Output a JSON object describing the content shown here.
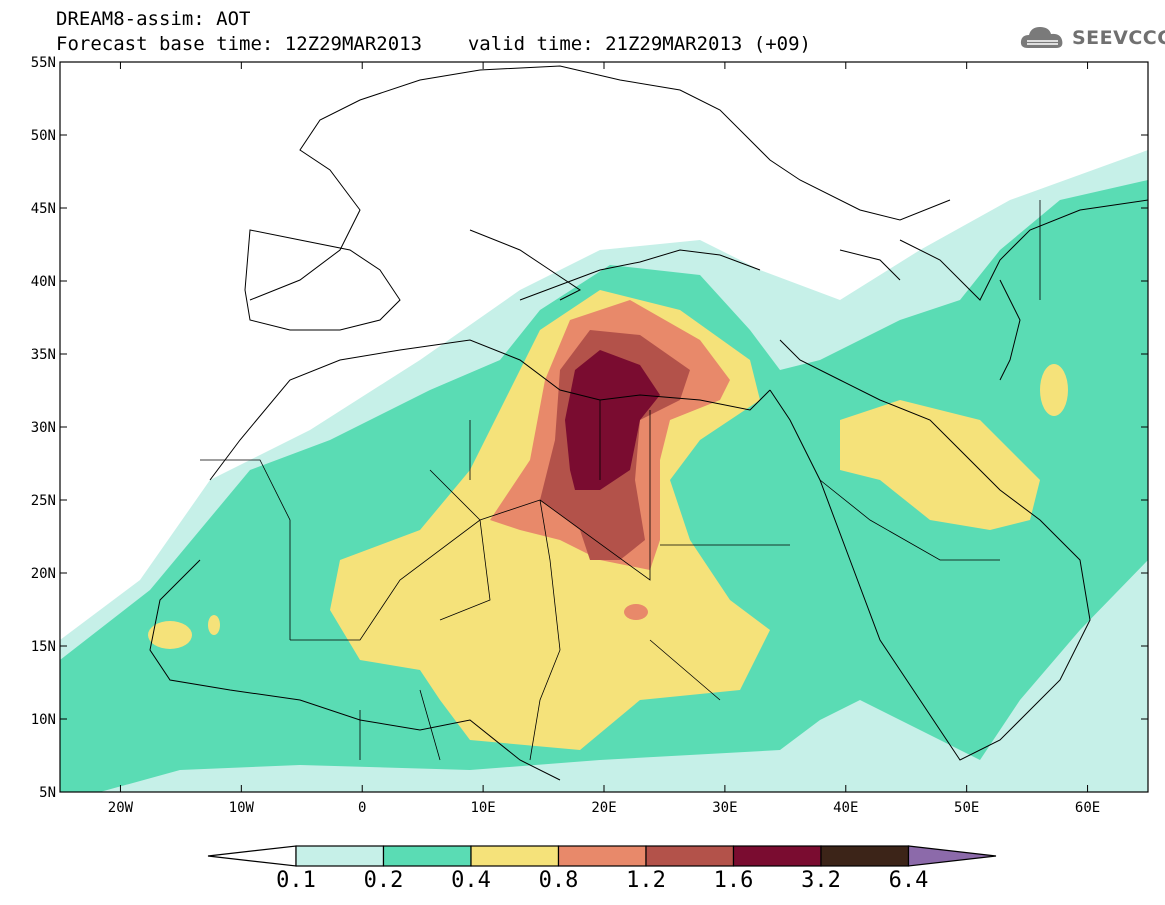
{
  "header": {
    "title_line1": "DREAM8-assim: AOT",
    "forecast_base": "Forecast base time: 12Z29MAR2013",
    "valid_time": "valid time: 21Z29MAR2013 (+09)"
  },
  "logo": {
    "text": "SEEVCCC",
    "icon": "cloud-icon"
  },
  "map": {
    "lon_range": [
      -25,
      65
    ],
    "lat_range": [
      5,
      55
    ],
    "lat_ticks": [
      "55N",
      "50N",
      "45N",
      "40N",
      "35N",
      "30N",
      "25N",
      "20N",
      "15N",
      "10N",
      "5N"
    ],
    "lon_ticks": [
      "20W",
      "10W",
      "0",
      "10E",
      "20E",
      "30E",
      "40E",
      "50E",
      "60E"
    ]
  },
  "colorbar": {
    "levels": [
      "0.1",
      "0.2",
      "0.4",
      "0.8",
      "1.2",
      "1.6",
      "3.2",
      "6.4"
    ],
    "colors": [
      "#ffffff",
      "#c6f0e8",
      "#5adcb4",
      "#f5e27a",
      "#e8896a",
      "#b3524a",
      "#7a0c30",
      "#3c2418",
      "#8c6aaa"
    ]
  },
  "chart_data": {
    "type": "heatmap",
    "title": "DREAM8-assim: AOT",
    "xlabel": "",
    "ylabel": "",
    "xlim": [
      -25,
      65
    ],
    "ylim": [
      5,
      55
    ],
    "levels": [
      0.1,
      0.2,
      0.4,
      0.8,
      1.2,
      1.6,
      3.2,
      6.4
    ],
    "max_region": "central Libya / Chad, peak class 1.6-3.2 near 20E 30N"
  }
}
